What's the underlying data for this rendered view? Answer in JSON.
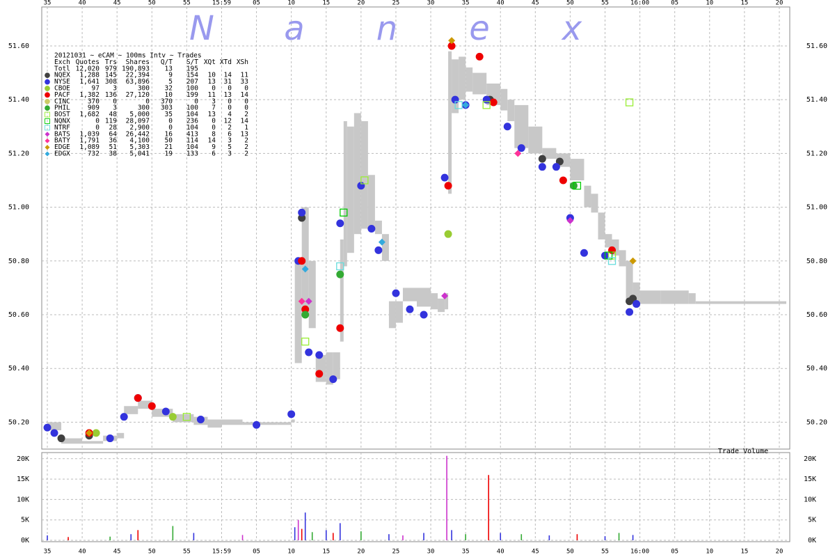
{
  "watermark": [
    "N",
    "a",
    "n",
    "e",
    "x"
  ],
  "table": {
    "subtitle": "20121031 ~ eCAM ~ 100ms Intv ~ Trades",
    "columns": [
      "Exch",
      "Quotes",
      "Trs",
      "Shares",
      "Q/T",
      "S/T",
      "XQt",
      "XTd",
      "XSh"
    ],
    "total": [
      "Totl",
      "12,020",
      "979",
      "190,893",
      "13",
      "195"
    ],
    "rows": [
      [
        "1,288",
        "145",
        "22,394",
        "9",
        "154",
        "10",
        "14",
        "11"
      ],
      [
        "1,641",
        "308",
        "63,896",
        "5",
        "207",
        "13",
        "31",
        "33"
      ],
      [
        "97",
        "3",
        "300",
        "32",
        "100",
        "0",
        "0",
        "0"
      ],
      [
        "1,382",
        "136",
        "27,120",
        "10",
        "199",
        "11",
        "13",
        "14"
      ],
      [
        "370",
        "0",
        "0",
        "370",
        "0",
        "3",
        "0",
        "0"
      ],
      [
        "909",
        "3",
        "300",
        "303",
        "100",
        "7",
        "0",
        "0"
      ],
      [
        "1,682",
        "48",
        "5,000",
        "35",
        "104",
        "13",
        "4",
        "2"
      ],
      [
        "0",
        "119",
        "28,097",
        "0",
        "236",
        "0",
        "12",
        "14"
      ],
      [
        "0",
        "28",
        "2,900",
        "0",
        "104",
        "0",
        "2",
        "1"
      ],
      [
        "1,039",
        "64",
        "26,442",
        "16",
        "413",
        "8",
        "6",
        "13"
      ],
      [
        "1,791",
        "36",
        "4,100",
        "50",
        "114",
        "14",
        "3",
        "2"
      ],
      [
        "1,089",
        "51",
        "5,303",
        "21",
        "104",
        "9",
        "5",
        "2"
      ],
      [
        "732",
        "38",
        "5,041",
        "19",
        "133",
        "6",
        "3",
        "2"
      ]
    ]
  },
  "chart_data": [
    {
      "type": "scatter",
      "xlim": [
        34.2,
        141.5
      ],
      "ylim": [
        50.1,
        51.745
      ],
      "xticks": [
        {
          "value": 35,
          "label": "35"
        },
        {
          "value": 40,
          "label": "40"
        },
        {
          "value": 45,
          "label": "45"
        },
        {
          "value": 50,
          "label": "50"
        },
        {
          "value": 55,
          "label": "55"
        },
        {
          "value": 60,
          "label": "15:59"
        },
        {
          "value": 65,
          "label": "05"
        },
        {
          "value": 70,
          "label": "10"
        },
        {
          "value": 75,
          "label": "15"
        },
        {
          "value": 80,
          "label": "20"
        },
        {
          "value": 85,
          "label": "25"
        },
        {
          "value": 90,
          "label": "30"
        },
        {
          "value": 95,
          "label": "35"
        },
        {
          "value": 100,
          "label": "40"
        },
        {
          "value": 105,
          "label": "45"
        },
        {
          "value": 110,
          "label": "50"
        },
        {
          "value": 115,
          "label": "55"
        },
        {
          "value": 120,
          "label": "16:00"
        },
        {
          "value": 125,
          "label": "05"
        },
        {
          "value": 130,
          "label": "10"
        },
        {
          "value": 135,
          "label": "15"
        },
        {
          "value": 140,
          "label": "20"
        }
      ],
      "yticks": [
        {
          "value": 50.2,
          "label": "50.20"
        },
        {
          "value": 50.4,
          "label": "50.40"
        },
        {
          "value": 50.6,
          "label": "50.60"
        },
        {
          "value": 50.8,
          "label": "50.80"
        },
        {
          "value": 51,
          "label": "51.00"
        },
        {
          "value": 51.2,
          "label": "51.20"
        },
        {
          "value": 51.4,
          "label": "51.40"
        },
        {
          "value": 51.6,
          "label": "51.60"
        }
      ],
      "grid": true,
      "nbbo_color": "#c8c8c8",
      "nbbo": {
        "x": [
          35,
          37,
          40,
          43,
          45,
          46,
          48,
          50,
          53,
          56,
          58,
          60,
          63,
          68,
          70,
          70.5,
          71.5,
          72.5,
          73.5,
          75,
          76,
          77,
          77.5,
          78,
          79,
          80,
          81,
          82,
          83,
          84,
          85,
          86,
          88,
          90,
          91,
          92,
          92.5,
          93,
          94,
          95,
          96,
          98,
          100,
          101,
          102,
          104,
          106,
          108,
          110,
          112,
          113,
          114,
          115,
          116,
          117,
          118,
          119,
          120,
          123,
          127,
          128,
          141
        ],
        "low": [
          50.17,
          50.12,
          50.12,
          50.13,
          50.14,
          50.23,
          50.25,
          50.22,
          50.2,
          50.19,
          50.18,
          50.19,
          50.19,
          50.19,
          50.2,
          50.42,
          50.6,
          50.55,
          50.35,
          50.34,
          50.36,
          50.5,
          50.78,
          50.83,
          50.9,
          50.92,
          50.92,
          50.9,
          50.8,
          50.55,
          50.57,
          50.65,
          50.63,
          50.62,
          50.61,
          50.62,
          51.05,
          51.35,
          51.4,
          51.43,
          51.42,
          51.38,
          51.36,
          51.32,
          51.22,
          51.2,
          51.18,
          51.15,
          51.1,
          51,
          50.98,
          50.88,
          50.85,
          50.82,
          50.78,
          50.65,
          50.63,
          50.64,
          50.64,
          50.64,
          50.64,
          50.64
        ],
        "high": [
          50.2,
          50.14,
          50.13,
          50.15,
          50.16,
          50.26,
          50.28,
          50.25,
          50.23,
          50.22,
          50.21,
          50.21,
          50.2,
          50.2,
          50.21,
          50.8,
          51,
          50.8,
          50.45,
          50.46,
          50.46,
          50.88,
          51.32,
          51.3,
          51.35,
          51.32,
          51.12,
          50.95,
          50.9,
          50.65,
          50.65,
          50.7,
          50.7,
          50.68,
          50.66,
          50.68,
          51.58,
          51.55,
          51.56,
          51.52,
          51.5,
          51.46,
          51.44,
          51.4,
          51.38,
          51.3,
          51.22,
          51.2,
          51.18,
          51.08,
          51.05,
          50.98,
          50.9,
          50.88,
          50.84,
          50.8,
          50.72,
          50.69,
          50.69,
          50.68,
          50.65,
          50.65
        ]
      },
      "series": [
        {
          "name": "NQEX",
          "color": "#404040",
          "marker": "circle",
          "x": [
            37,
            41,
            71.5,
            98.5,
            106,
            108.5,
            118.5,
            119
          ],
          "values": [
            50.14,
            50.15,
            50.96,
            51.4,
            51.18,
            51.17,
            50.65,
            50.66
          ]
        },
        {
          "name": "NYSE",
          "color": "#3333dd",
          "marker": "circle",
          "x": [
            35,
            36,
            44,
            46,
            48,
            52,
            57,
            65,
            70,
            71,
            71.5,
            72.5,
            74,
            76,
            77,
            80,
            81.5,
            82.5,
            85,
            87,
            89,
            92,
            93.5,
            95,
            98,
            101,
            103,
            106,
            108,
            110,
            112,
            115,
            118.5,
            119.5
          ],
          "values": [
            50.18,
            50.16,
            50.14,
            50.22,
            50.29,
            50.24,
            50.21,
            50.19,
            50.23,
            50.8,
            50.98,
            50.46,
            50.45,
            50.36,
            50.94,
            51.08,
            50.92,
            50.84,
            50.68,
            50.62,
            50.6,
            51.11,
            51.4,
            51.38,
            51.4,
            51.3,
            51.22,
            51.15,
            51.15,
            50.96,
            50.83,
            50.82,
            50.61,
            50.64
          ]
        },
        {
          "name": "CBOE",
          "color": "#99cc33",
          "marker": "circle",
          "x": [
            42,
            53,
            92.5
          ],
          "values": [
            50.16,
            50.22,
            50.9
          ]
        },
        {
          "name": "PACF",
          "color": "#ee0000",
          "marker": "circle",
          "x": [
            41,
            48,
            50,
            71.5,
            72,
            74,
            77,
            92.5,
            93,
            97,
            99,
            109,
            116
          ],
          "values": [
            50.16,
            50.29,
            50.26,
            50.8,
            50.62,
            50.38,
            50.55,
            51.08,
            51.6,
            51.56,
            51.39,
            51.1,
            50.84
          ]
        },
        {
          "name": "CINC",
          "color": "#cccc66",
          "marker": "circle",
          "x": [],
          "values": []
        },
        {
          "name": "PHIL",
          "color": "#33aa33",
          "marker": "circle",
          "x": [
            72,
            77,
            110.5
          ],
          "values": [
            50.6,
            50.75,
            51.08
          ]
        },
        {
          "name": "BOST",
          "color": "#99ee33",
          "marker": "square",
          "x": [
            55,
            72,
            80.5,
            98,
            116,
            118.5
          ],
          "values": [
            50.22,
            50.5,
            51.1,
            51.38,
            50.82,
            51.39
          ]
        },
        {
          "name": "NQNX",
          "color": "#00cc00",
          "marker": "square",
          "x": [
            77.5,
            111,
            115.5
          ],
          "values": [
            50.98,
            51.08,
            50.82
          ]
        },
        {
          "name": "NTRF",
          "color": "#66dddd",
          "marker": "square",
          "x": [
            77,
            94,
            116
          ],
          "values": [
            50.78,
            51.38,
            50.8
          ]
        },
        {
          "name": "BATS",
          "color": "#cc33cc",
          "marker": "diamond",
          "x": [
            72.5,
            92,
            110
          ],
          "values": [
            50.65,
            50.67,
            50.95
          ]
        },
        {
          "name": "BATY",
          "color": "#ff3399",
          "marker": "diamond",
          "x": [
            71.5,
            102.5
          ],
          "values": [
            50.65,
            51.2
          ]
        },
        {
          "name": "EDGE",
          "color": "#cc9900",
          "marker": "diamond",
          "x": [
            41,
            93,
            119
          ],
          "values": [
            50.16,
            51.62,
            50.8
          ]
        },
        {
          "name": "EDGX",
          "color": "#33aadd",
          "marker": "diamond",
          "x": [
            72,
            83,
            95
          ],
          "values": [
            50.77,
            50.87,
            51.38
          ]
        }
      ]
    },
    {
      "type": "bar",
      "title": "Trade Volume",
      "xlim": [
        34.2,
        141.5
      ],
      "ylim": [
        0,
        21500
      ],
      "yticks": [
        {
          "value": 0,
          "label": "0K"
        },
        {
          "value": 5000,
          "label": "5K"
        },
        {
          "value": 10000,
          "label": "10K"
        },
        {
          "value": 15000,
          "label": "15K"
        },
        {
          "value": 20000,
          "label": "20K"
        }
      ],
      "x": [
        35,
        38,
        44,
        47,
        48,
        53,
        56,
        63,
        70.5,
        71,
        71.5,
        72,
        73,
        75,
        76,
        77,
        80,
        84,
        86,
        89,
        92.3,
        93,
        95,
        98.3,
        100,
        103,
        107,
        111,
        115,
        117,
        119
      ],
      "values": [
        1200,
        800,
        900,
        1500,
        2500,
        3500,
        1800,
        1300,
        3200,
        5000,
        2800,
        6800,
        2000,
        2500,
        1800,
        4200,
        2200,
        1500,
        1200,
        1800,
        20700,
        2500,
        1500,
        16000,
        1800,
        1500,
        1200,
        1500,
        1000,
        1800,
        1300
      ],
      "colors": [
        "#3333dd",
        "#ee0000",
        "#33aa33",
        "#3333dd",
        "#ee0000",
        "#33aa33",
        "#3333dd",
        "#cc33cc",
        "#3333dd",
        "#cc33cc",
        "#ee0000",
        "#3333dd",
        "#33aa33",
        "#3333dd",
        "#ee0000",
        "#3333dd",
        "#33aa33",
        "#3333dd",
        "#cc33cc",
        "#3333dd",
        "#cc33cc",
        "#3333dd",
        "#33aa33",
        "#ee0000",
        "#3333dd",
        "#33aa33",
        "#3333dd",
        "#ee0000",
        "#3333dd",
        "#33aa33",
        "#3333dd"
      ]
    }
  ]
}
